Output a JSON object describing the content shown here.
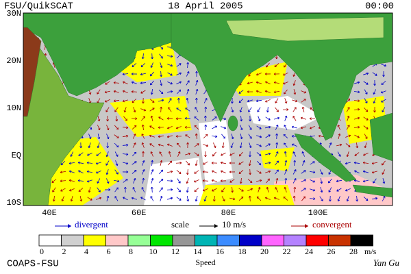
{
  "header": {
    "source": "FSU/QuikSCAT",
    "date": "18 April 2005",
    "time": "00:00"
  },
  "map": {
    "lat_labels": [
      "30N",
      "20N",
      "10N",
      "EQ",
      "10S"
    ],
    "lon_labels": [
      "40E",
      "60E",
      "80E",
      "100E"
    ]
  },
  "legend": {
    "divergent": "divergent",
    "scale": "scale",
    "scale_value": "10 m/s",
    "convergent": "convergent"
  },
  "colorbar": {
    "colors": [
      "#ffffff",
      "#d0d0d0",
      "#ffff00",
      "#ffc8c8",
      "#96ff96",
      "#00e600",
      "#969696",
      "#00b4b4",
      "#3c8cff",
      "#0000c8",
      "#ff64ff",
      "#b482ff",
      "#ff0000",
      "#c83200",
      "#000000"
    ],
    "labels": [
      0,
      2,
      4,
      6,
      8,
      10,
      12,
      14,
      16,
      18,
      20,
      22,
      24,
      26,
      28
    ],
    "unit": "m/s",
    "title": "Speed"
  },
  "footer": {
    "credit": "COAPS-FSU",
    "author": "Yan Gu"
  }
}
